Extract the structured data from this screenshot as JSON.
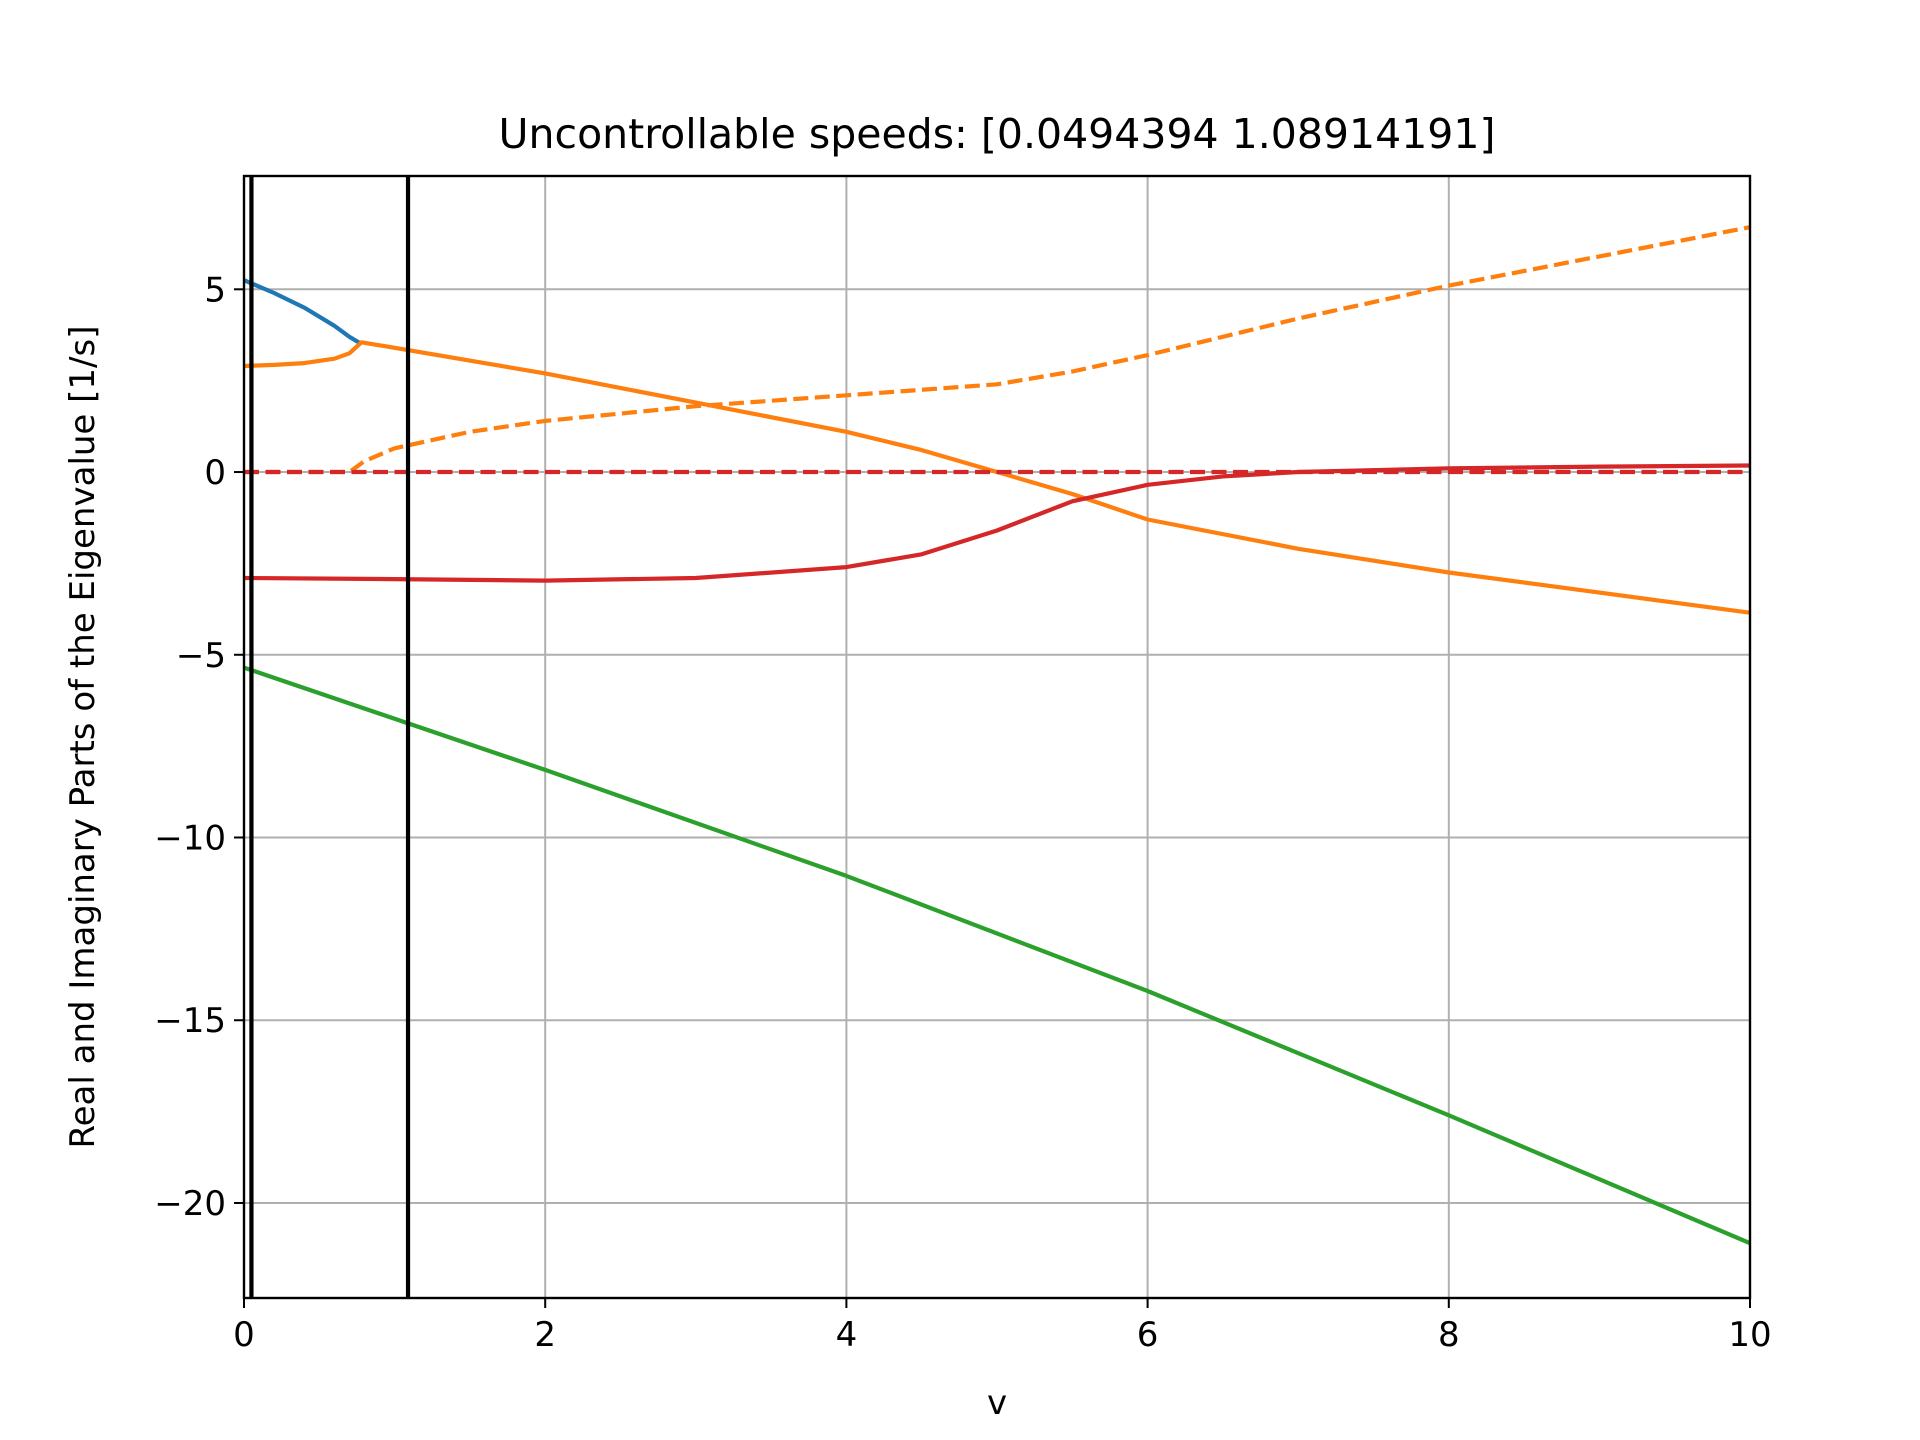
{
  "chart_data": {
    "type": "line",
    "title": "Uncontrollable speeds: [0.0494394  1.08914191]",
    "xlabel": "v",
    "ylabel": "Real and Imaginary Parts of the Eigenvalue [1/s]",
    "xlim": [
      0,
      10
    ],
    "ylim": [
      -22.6,
      8.1
    ],
    "xticks": [
      0,
      2,
      4,
      6,
      8,
      10
    ],
    "yticks": [
      -20,
      -15,
      -10,
      -5,
      0,
      5
    ],
    "xtick_labels": [
      "0",
      "2",
      "4",
      "6",
      "8",
      "10"
    ],
    "ytick_labels": [
      "−20",
      "−15",
      "−10",
      "−5",
      "0",
      "5"
    ],
    "grid": true,
    "legend": "none",
    "vlines": [
      0.0494394,
      1.08914191
    ],
    "vline_color": "#000000",
    "series": [
      {
        "color": "#1f77b4",
        "style": "solid",
        "x": [
          0,
          0.2,
          0.4,
          0.6,
          0.7,
          0.78
        ],
        "y": [
          5.25,
          4.9,
          4.5,
          4.0,
          3.7,
          3.5
        ]
      },
      {
        "color": "#ff7f0e",
        "style": "solid",
        "x": [
          0,
          0.2,
          0.4,
          0.6,
          0.7,
          0.78,
          1.0,
          2.0,
          3.0,
          4.0,
          4.5,
          5.0,
          5.5,
          6.0,
          7.0,
          8.0,
          9.0,
          10.0
        ],
        "y": [
          2.9,
          2.93,
          2.98,
          3.1,
          3.25,
          3.55,
          3.4,
          2.7,
          1.9,
          1.1,
          0.6,
          0.0,
          -0.6,
          -1.3,
          -2.1,
          -2.75,
          -3.3,
          -3.85
        ]
      },
      {
        "color": "#ff7f0e",
        "style": "dashed",
        "x": [
          0,
          0.7,
          0.8,
          1.0,
          1.5,
          2.0,
          3.0,
          4.0,
          5.0,
          5.5,
          6.0,
          7.0,
          8.0,
          9.0,
          10.0
        ],
        "y": [
          0.0,
          0.0,
          0.3,
          0.65,
          1.1,
          1.4,
          1.8,
          2.1,
          2.4,
          2.75,
          3.2,
          4.2,
          5.1,
          5.9,
          6.7
        ]
      },
      {
        "color": "#d62728",
        "style": "solid",
        "x": [
          0,
          1.0,
          2.0,
          3.0,
          4.0,
          4.5,
          5.0,
          5.5,
          6.0,
          6.5,
          7.0,
          8.0,
          9.0,
          10.0
        ],
        "y": [
          -2.9,
          -2.93,
          -2.97,
          -2.9,
          -2.6,
          -2.25,
          -1.6,
          -0.8,
          -0.35,
          -0.12,
          0.0,
          0.1,
          0.15,
          0.18
        ]
      },
      {
        "color": "#d62728",
        "style": "dashed",
        "x": [
          0,
          10
        ],
        "y": [
          0.0,
          0.0
        ]
      },
      {
        "color": "#2ca02c",
        "style": "solid",
        "x": [
          0,
          2,
          4,
          6,
          8,
          10
        ],
        "y": [
          -5.35,
          -8.15,
          -11.05,
          -14.2,
          -17.6,
          -21.1
        ]
      }
    ]
  }
}
